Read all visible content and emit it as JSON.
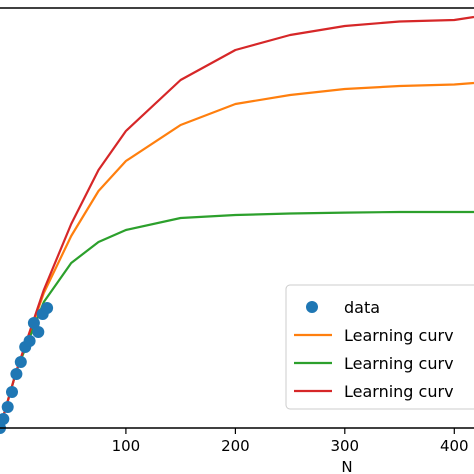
{
  "chart_data": {
    "type": "line",
    "xlabel": "N",
    "ylabel": "",
    "xlim": [
      -15,
      418
    ],
    "ylim": [
      0,
      1.4
    ],
    "x_ticks": [
      100,
      200,
      300,
      400
    ],
    "x_tick_labels": [
      "100",
      "200",
      "300",
      "400"
    ],
    "grid": false,
    "legend_position": "lower-right",
    "scatter": {
      "name": "data",
      "color": "#1f77b4",
      "points": [
        [
          -15,
          0.0
        ],
        [
          -12,
          0.03
        ],
        [
          -8,
          0.07
        ],
        [
          -4,
          0.12
        ],
        [
          0,
          0.18
        ],
        [
          4,
          0.22
        ],
        [
          8,
          0.27
        ],
        [
          12,
          0.29
        ],
        [
          16,
          0.35
        ],
        [
          20,
          0.32
        ],
        [
          24,
          0.38
        ],
        [
          28,
          0.4
        ]
      ]
    },
    "series": [
      {
        "name": "Learning curv",
        "color": "#ff7f0e",
        "x": [
          -15,
          0,
          25,
          50,
          75,
          100,
          150,
          200,
          250,
          300,
          350,
          400,
          418
        ],
        "y": [
          0.0,
          0.19,
          0.45,
          0.64,
          0.79,
          0.89,
          1.01,
          1.08,
          1.11,
          1.13,
          1.14,
          1.145,
          1.15
        ]
      },
      {
        "name": "Learning curv",
        "color": "#2ca02c",
        "x": [
          -15,
          0,
          25,
          50,
          75,
          100,
          150,
          200,
          250,
          300,
          350,
          400,
          418
        ],
        "y": [
          0.0,
          0.19,
          0.42,
          0.55,
          0.62,
          0.66,
          0.7,
          0.71,
          0.715,
          0.718,
          0.72,
          0.72,
          0.72
        ]
      },
      {
        "name": "Learning curv",
        "color": "#d62728",
        "x": [
          -15,
          0,
          25,
          50,
          75,
          100,
          150,
          200,
          250,
          300,
          350,
          400,
          418
        ],
        "y": [
          0.0,
          0.19,
          0.46,
          0.68,
          0.86,
          0.99,
          1.16,
          1.26,
          1.31,
          1.34,
          1.355,
          1.36,
          1.37
        ]
      }
    ]
  }
}
